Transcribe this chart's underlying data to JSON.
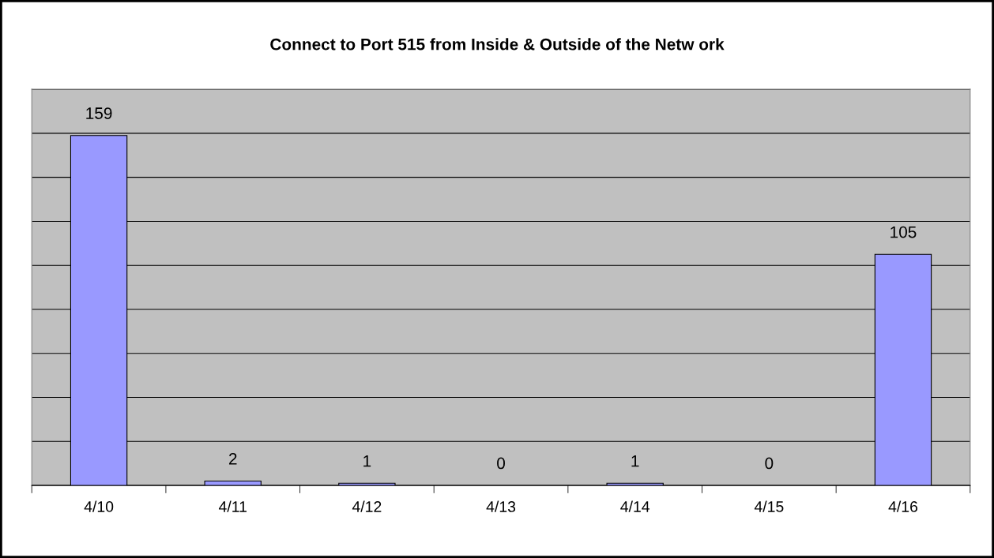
{
  "chart_data": {
    "type": "bar",
    "title": "Connect to Port 515 from Inside & Outside of the Netw ork",
    "categories": [
      "4/10",
      "4/11",
      "4/12",
      "4/13",
      "4/14",
      "4/15",
      "4/16"
    ],
    "values": [
      159,
      2,
      1,
      0,
      1,
      0,
      105
    ],
    "color": "#9999ff",
    "ylim": [
      0,
      180
    ],
    "yticks": [
      {
        "value": 0,
        "label": null
      },
      {
        "value": 20,
        "label": null
      },
      {
        "value": 40,
        "label": null
      },
      {
        "value": 60,
        "label": null
      },
      {
        "value": 80,
        "label": null
      },
      {
        "value": 100,
        "label": null
      },
      {
        "value": 120,
        "label": null
      },
      {
        "value": 140,
        "label": null
      },
      {
        "value": 160,
        "label": null
      },
      {
        "value": 180,
        "label": null
      }
    ],
    "tick_labels": "x",
    "grid": "y",
    "data_labels": true,
    "legend": false
  }
}
